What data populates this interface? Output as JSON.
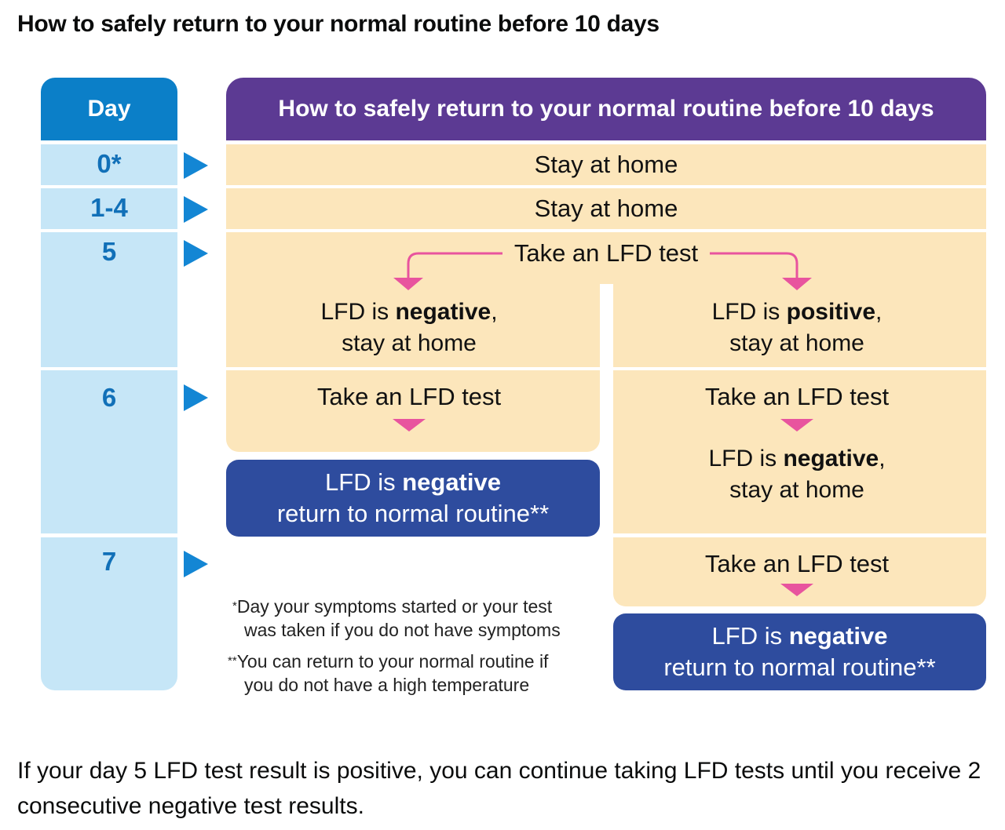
{
  "page_title": "How to safely return to your normal routine before 10 days",
  "diagram": {
    "day_header": "Day",
    "main_header": "How to safely return to your normal routine before 10 days",
    "days": [
      "0*",
      "1-4",
      "5",
      "6",
      "7"
    ],
    "rows": {
      "day0": "Stay at home",
      "day1_4": "Stay at home",
      "day5_test": "Take an LFD test",
      "day5_negative": {
        "pre": "LFD is ",
        "bold": "negative",
        "post": ",",
        "line2": "stay at home"
      },
      "day5_positive": {
        "pre": "LFD is ",
        "bold": "positive",
        "post": ",",
        "line2": "stay at home"
      },
      "day6_left_test": "Take an LFD test",
      "day6_right_test": "Take an LFD test",
      "day6_right_negative": {
        "pre": "LFD is ",
        "bold": "negative",
        "post": ",",
        "line2": "stay at home"
      },
      "day7_right_test": "Take an LFD test"
    },
    "outcome_left": {
      "pre": "LFD is ",
      "bold": "negative",
      "line2": "return to normal routine**"
    },
    "outcome_right": {
      "pre": "LFD is ",
      "bold": "negative",
      "line2": "return to normal routine**"
    },
    "footnotes": [
      {
        "marker": "*",
        "line1": "Day your symptoms started or your test",
        "line2": "was taken if you do not have symptoms"
      },
      {
        "marker": "**",
        "line1": "You can return to your normal routine if",
        "line2": "you do not have a high temperature"
      }
    ],
    "colors": {
      "day_header": "#0b7fc8",
      "day_cell": "#c6e6f7",
      "day_text": "#1170b8",
      "main_header": "#5c3a93",
      "cream": "#fce6bb",
      "outcome": "#2e4c9e",
      "pink_arrow": "#e8549e",
      "blue_arrow": "#1386d4"
    }
  },
  "body_text": "If your day 5 LFD test result is positive, you can continue taking LFD tests until you receive 2 consecutive negative test results."
}
